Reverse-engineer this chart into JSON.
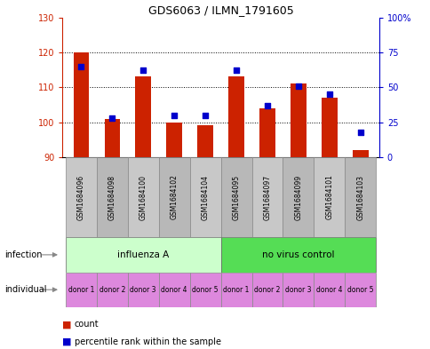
{
  "title": "GDS6063 / ILMN_1791605",
  "samples": [
    "GSM1684096",
    "GSM1684098",
    "GSM1684100",
    "GSM1684102",
    "GSM1684104",
    "GSM1684095",
    "GSM1684097",
    "GSM1684099",
    "GSM1684101",
    "GSM1684103"
  ],
  "counts": [
    120,
    101,
    113,
    100,
    99,
    113,
    104,
    111,
    107,
    92
  ],
  "percentiles": [
    65,
    28,
    62,
    30,
    30,
    62,
    37,
    51,
    45,
    18
  ],
  "bar_base": 90,
  "ylim": [
    90,
    130
  ],
  "y2lim": [
    0,
    100
  ],
  "yticks": [
    90,
    100,
    110,
    120,
    130
  ],
  "y2ticks": [
    0,
    25,
    50,
    75,
    100
  ],
  "y2ticklabels": [
    "0",
    "25",
    "50",
    "75",
    "100%"
  ],
  "bar_color": "#cc2200",
  "dot_color": "#0000cc",
  "infection_groups": [
    {
      "label": "influenza A",
      "start": 0,
      "end": 5,
      "color": "#ccffcc"
    },
    {
      "label": "no virus control",
      "start": 5,
      "end": 10,
      "color": "#55dd55"
    }
  ],
  "individual_labels": [
    "donor 1",
    "donor 2",
    "donor 3",
    "donor 4",
    "donor 5",
    "donor 1",
    "donor 2",
    "donor 3",
    "donor 4",
    "donor 5"
  ],
  "individual_color": "#dd88dd",
  "infection_label": "infection",
  "individual_label": "individual",
  "legend_count_label": "count",
  "legend_pct_label": "percentile rank within the sample",
  "background_color": "#ffffff",
  "plot_bg": "#ffffff",
  "bar_width": 0.5,
  "sample_box_color1": "#c8c8c8",
  "sample_box_color2": "#b8b8b8"
}
